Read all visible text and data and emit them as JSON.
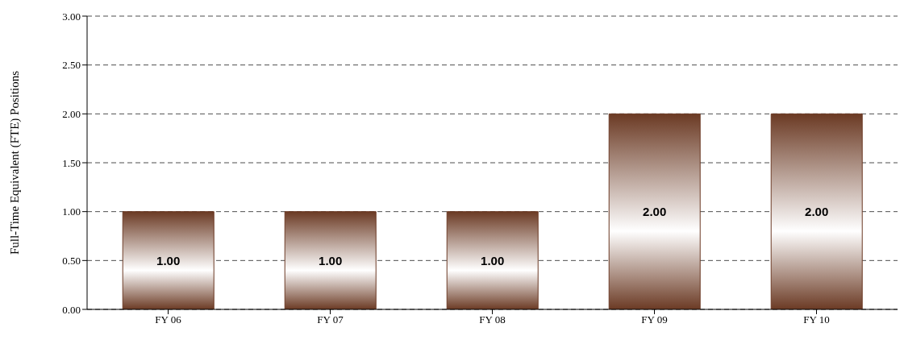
{
  "chart_data": {
    "type": "bar",
    "ylabel": "Full-Time Equivalent (FTE) Positions",
    "categories": [
      "FY 06",
      "FY 07",
      "FY 08",
      "FY 09",
      "FY 10"
    ],
    "values": [
      1,
      1,
      1,
      2,
      2
    ],
    "value_labels": [
      "1.00",
      "1.00",
      "1.00",
      "2.00",
      "2.00"
    ],
    "color": "#6b3a24",
    "ylim": [
      0,
      3
    ],
    "yticks": [
      {
        "value": 0,
        "label": "0.00"
      },
      {
        "value": 0.5,
        "label": "0.50"
      },
      {
        "value": 1,
        "label": "1.00"
      },
      {
        "value": 1.5,
        "label": "1.50"
      },
      {
        "value": 2,
        "label": "2.00"
      },
      {
        "value": 2.5,
        "label": "2.50"
      },
      {
        "value": 3,
        "label": "3.00"
      }
    ],
    "grid": "y",
    "legend": false
  }
}
